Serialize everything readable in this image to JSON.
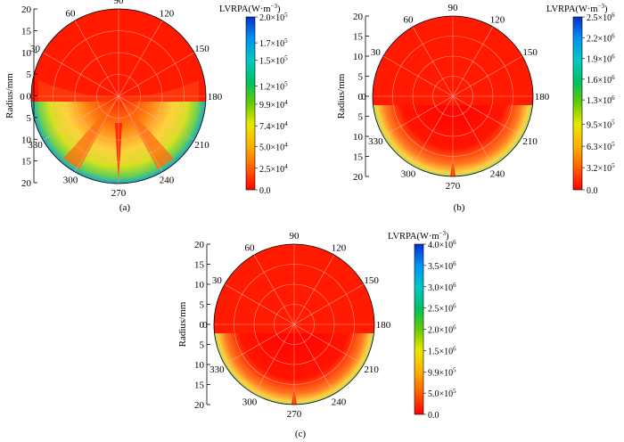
{
  "chart_data": [
    {
      "type": "heatmap",
      "panel_label": "(a)",
      "ylabel": "Radius/mm",
      "r_ticks": [
        "20",
        "15",
        "10",
        "5",
        "0",
        "5",
        "10",
        "15",
        "20"
      ],
      "angle_ticks": [
        "90",
        "120",
        "150",
        "180",
        "210",
        "240",
        "270",
        "300",
        "330",
        "0",
        "30",
        "60"
      ],
      "colorbar": {
        "title_prefix": "LVRPA(W·m",
        "title_sup": "−3",
        "title_suffix": ")",
        "max": 200000,
        "ticks": [
          {
            "value": 0,
            "label": "0.0"
          },
          {
            "value": 25000,
            "label": "2.5×10",
            "exp": "4"
          },
          {
            "value": 50000,
            "label": "5.0×10",
            "exp": "4"
          },
          {
            "value": 74000,
            "label": "7.4×10",
            "exp": "4"
          },
          {
            "value": 99000,
            "label": "9.9×10",
            "exp": "4"
          },
          {
            "value": 120000,
            "label": "1.2×10",
            "exp": "5"
          },
          {
            "value": 150000,
            "label": "1.5×10",
            "exp": "5"
          },
          {
            "value": 170000,
            "label": "1.7×10",
            "exp": "5"
          },
          {
            "value": 200000,
            "label": "2.0×10",
            "exp": "5"
          }
        ]
      }
    },
    {
      "type": "heatmap",
      "panel_label": "(b)",
      "ylabel": "Radius/mm",
      "r_ticks": [
        "20",
        "15",
        "10",
        "5",
        "0",
        "5",
        "10",
        "15",
        "20"
      ],
      "angle_ticks": [
        "90",
        "120",
        "150",
        "180",
        "210",
        "240",
        "270",
        "300",
        "330",
        "0",
        "30",
        "60"
      ],
      "colorbar": {
        "title_prefix": "LVRPA(W·m",
        "title_sup": "−3",
        "title_suffix": ")",
        "max": 2500000,
        "ticks": [
          {
            "value": 0,
            "label": "0.0"
          },
          {
            "value": 320000,
            "label": "3.2×10",
            "exp": "5"
          },
          {
            "value": 630000,
            "label": "6.3×10",
            "exp": "5"
          },
          {
            "value": 950000,
            "label": "9.5×10",
            "exp": "5"
          },
          {
            "value": 1300000,
            "label": "1.3×10",
            "exp": "6"
          },
          {
            "value": 1600000,
            "label": "1.6×10",
            "exp": "6"
          },
          {
            "value": 1900000,
            "label": "1.9×10",
            "exp": "6"
          },
          {
            "value": 2200000,
            "label": "2.2×10",
            "exp": "6"
          },
          {
            "value": 2500000,
            "label": "2.5×10",
            "exp": "6"
          }
        ]
      }
    },
    {
      "type": "heatmap",
      "panel_label": "(c)",
      "ylabel": "Radius/mm",
      "r_ticks": [
        "20",
        "15",
        "10",
        "5",
        "0",
        "5",
        "10",
        "15",
        "20"
      ],
      "angle_ticks": [
        "90",
        "120",
        "150",
        "180",
        "210",
        "240",
        "270",
        "300",
        "330",
        "0",
        "30",
        "60"
      ],
      "colorbar": {
        "title_prefix": "LVRPA(W·m",
        "title_sup": "−3",
        "title_suffix": ")",
        "max": 4000000,
        "ticks": [
          {
            "value": 0,
            "label": "0.0"
          },
          {
            "value": 500000,
            "label": "5.0×10",
            "exp": "5"
          },
          {
            "value": 990000,
            "label": "9.9×10",
            "exp": "5"
          },
          {
            "value": 1500000,
            "label": "1.5×10",
            "exp": "6"
          },
          {
            "value": 2000000,
            "label": "2.0×10",
            "exp": "6"
          },
          {
            "value": 2500000,
            "label": "2.5×10",
            "exp": "6"
          },
          {
            "value": 3000000,
            "label": "3.0×10",
            "exp": "6"
          },
          {
            "value": 3500000,
            "label": "3.5×10",
            "exp": "6"
          },
          {
            "value": 4000000,
            "label": "4.0×10",
            "exp": "6"
          }
        ]
      }
    }
  ]
}
